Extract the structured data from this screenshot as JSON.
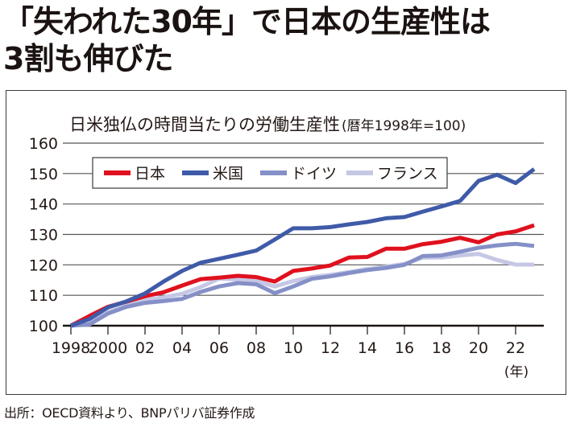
{
  "headline": {
    "line1": "「失われた30年」で日本の生産性は",
    "line2": "3割も伸びた"
  },
  "source": "出所：OECD資料より、BNPパリバ証券作成",
  "chart_data": {
    "type": "line",
    "title": "日米独仏の時間当たりの労働生産性",
    "subtitle": "(暦年1998年=100)",
    "xlabel": "(年)",
    "ylabel": "",
    "xlim": [
      1998,
      2023.5
    ],
    "ylim": [
      100,
      160
    ],
    "grid": true,
    "legend_position": "top-left",
    "yticks": [
      100,
      110,
      120,
      130,
      140,
      150,
      160
    ],
    "xticks": [
      {
        "value": 1998,
        "label": "1998"
      },
      {
        "value": 2000,
        "label": "2000"
      },
      {
        "value": 2002,
        "label": "02"
      },
      {
        "value": 2004,
        "label": "04"
      },
      {
        "value": 2006,
        "label": "06"
      },
      {
        "value": 2008,
        "label": "08"
      },
      {
        "value": 2010,
        "label": "10"
      },
      {
        "value": 2012,
        "label": "12"
      },
      {
        "value": 2014,
        "label": "14"
      },
      {
        "value": 2016,
        "label": "16"
      },
      {
        "value": 2018,
        "label": "18"
      },
      {
        "value": 2020,
        "label": "20"
      },
      {
        "value": 2022,
        "label": "22"
      }
    ],
    "x": [
      1998,
      1999,
      2000,
      2001,
      2002,
      2003,
      2004,
      2005,
      2006,
      2007,
      2008,
      2009,
      2010,
      2011,
      2012,
      2013,
      2014,
      2015,
      2016,
      2017,
      2018,
      2019,
      2020,
      2021,
      2022,
      2023
    ],
    "series": [
      {
        "name": "フランス",
        "color": "#c5c7e5",
        "values": [
          100,
          100.9,
          104.4,
          106.6,
          108.4,
          109.3,
          110.5,
          112.7,
          115.5,
          115.2,
          114.7,
          112.9,
          114.7,
          116.0,
          116.7,
          117.6,
          118.7,
          119.4,
          120.3,
          122.4,
          122.4,
          123.1,
          123.6,
          121.6,
          120.1,
          120.1
        ]
      },
      {
        "name": "ドイツ",
        "color": "#8590c8",
        "values": [
          100,
          100.4,
          104.0,
          106.2,
          107.5,
          108.1,
          108.8,
          111.1,
          112.9,
          114.0,
          113.6,
          110.7,
          112.9,
          115.4,
          116.2,
          117.3,
          118.3,
          119.0,
          120.0,
          122.9,
          123.1,
          124.3,
          125.6,
          126.4,
          126.9,
          126.2
        ]
      },
      {
        "name": "日本",
        "color": "#e0111e",
        "values": [
          100,
          103.2,
          106.2,
          107.9,
          109.7,
          111.0,
          113.2,
          115.3,
          115.8,
          116.4,
          116.0,
          114.5,
          118.0,
          118.8,
          119.8,
          122.4,
          122.6,
          125.3,
          125.3,
          126.8,
          127.6,
          128.9,
          127.4,
          130.0,
          131.0,
          133.0
        ]
      },
      {
        "name": "米国",
        "color": "#3f5ba8",
        "values": [
          100,
          102.2,
          106.0,
          108.0,
          110.6,
          114.5,
          118.0,
          120.7,
          122.0,
          123.3,
          124.7,
          128.3,
          132.0,
          132.0,
          132.4,
          133.3,
          134.1,
          135.3,
          135.7,
          137.5,
          139.2,
          141.0,
          147.6,
          149.6,
          146.9,
          151.5
        ]
      }
    ],
    "legend": [
      {
        "name": "日本",
        "color": "#e0111e"
      },
      {
        "name": "米国",
        "color": "#3f5ba8"
      },
      {
        "name": "ドイツ",
        "color": "#8590c8"
      },
      {
        "name": "フランス",
        "color": "#c5c7e5"
      }
    ]
  }
}
